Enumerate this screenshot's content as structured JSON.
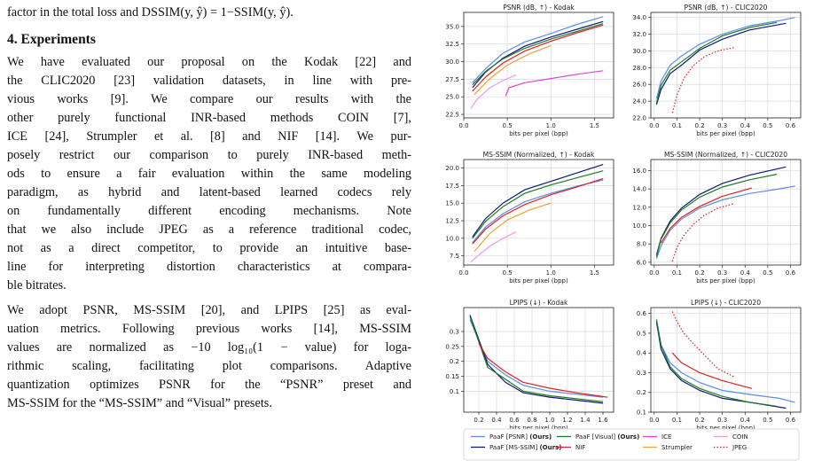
{
  "text": {
    "lines": [
      {
        "t": "factor in the total loss and DSSIM(y, ŷ) = 1−SSIM(y, ŷ).",
        "cls": ""
      },
      {
        "t": "4. Experiments",
        "cls": "h"
      },
      {
        "t": "We have evaluated our proposal on the Kodak [22] and",
        "cls": "j"
      },
      {
        "t": "the CLIC2020 [23] validation datasets, in line with pre-",
        "cls": "j"
      },
      {
        "t": "vious works [9].   We compare our results with the",
        "cls": "j"
      },
      {
        "t": "other purely functional INR-based methods COIN [7],",
        "cls": "j"
      },
      {
        "t": "ICE [24], Strumpler et al. [8] and NIF [14]. We pur-",
        "cls": "j"
      },
      {
        "t": "posely restrict our comparison to purely INR-based meth-",
        "cls": "j"
      },
      {
        "t": "ods to ensure a fair evaluation within the same modeling",
        "cls": "j"
      },
      {
        "t": "paradigm, as hybrid and latent-based learned codecs rely",
        "cls": "j"
      },
      {
        "t": "on fundamentally different encoding mechanisms. Note",
        "cls": "j"
      },
      {
        "t": "that we also include JPEG as a reference traditional codec,",
        "cls": "j"
      },
      {
        "t": "not as a direct competitor, to provide an intuitive base-",
        "cls": "j"
      },
      {
        "t": "line for interpreting distortion characteristics at compara-",
        "cls": "j"
      },
      {
        "t": "ble bitrates.",
        "cls": ""
      },
      {
        "t": "We adopt PSNR, MS-SSIM [20], and LPIPS [25] as eval-",
        "cls": "j"
      },
      {
        "t": "uation metrics. Following previous works [14], MS-SSIM",
        "cls": "j"
      },
      {
        "t": "values are normalized as −10 log₁₀(1 − value) for loga-",
        "cls": "j"
      },
      {
        "t": "rithmic scaling, facilitating plot comparisons. Adaptive",
        "cls": "j"
      },
      {
        "t": "quantization optimizes PSNR for the “PSNR” preset and",
        "cls": "j"
      },
      {
        "t": "MS-SSIM for the “MS-SSIM” and “Visual” presets.",
        "cls": ""
      }
    ]
  },
  "legend": [
    {
      "label": "PaaF [PSNR] ",
      "bold": "(Ours)",
      "color": "#5b8ee6",
      "dash": false
    },
    {
      "label": "PaaF [MS-SSIM] ",
      "bold": "(Ours)",
      "color": "#0b1a7a",
      "dash": false
    },
    {
      "label": "PaaF [Visual] ",
      "bold": "(Ours)",
      "color": "#1f7a1f",
      "dash": false
    },
    {
      "label": "NIF",
      "bold": "",
      "color": "#e02020",
      "dash": false
    },
    {
      "label": "ICE",
      "bold": "",
      "color": "#e040e0",
      "dash": false
    },
    {
      "label": "Strumpler",
      "bold": "",
      "color": "#f2a033",
      "dash": false
    },
    {
      "label": "COIN",
      "bold": "",
      "color": "#f09ae6",
      "dash": false
    },
    {
      "label": "JPEG",
      "bold": "",
      "color": "#d42020",
      "dash": true
    }
  ],
  "chart_data": [
    {
      "type": "line",
      "title": "PSNR (dB, ↑) - Kodak",
      "xlabel": "bits per pixel (bpp)",
      "ylabel": "",
      "xlim": [
        0,
        1.72
      ],
      "ylim": [
        22,
        37
      ],
      "xticks": [
        0.0,
        0.5,
        1.0,
        1.5
      ],
      "xticklabels": [
        "0.0",
        "0.5",
        "1.0",
        "1.5"
      ],
      "yticks": [
        22.5,
        25.0,
        27.5,
        30.0,
        32.5,
        35.0
      ],
      "yticklabels": [
        "22.5",
        "25.0",
        "27.5",
        "30.0",
        "32.5",
        "35.0"
      ],
      "series": [
        {
          "name": "PaaF [PSNR] (Ours)",
          "x": [
            0.1,
            0.25,
            0.45,
            0.7,
            1.0,
            1.3,
            1.6
          ],
          "y": [
            27.0,
            29.0,
            31.2,
            32.8,
            34.0,
            35.3,
            36.4
          ]
        },
        {
          "name": "PaaF [MS-SSIM] (Ours)",
          "x": [
            0.1,
            0.25,
            0.45,
            0.7,
            1.0,
            1.3,
            1.6
          ],
          "y": [
            26.3,
            28.5,
            30.5,
            32.2,
            33.5,
            34.6,
            35.7
          ]
        },
        {
          "name": "PaaF [Visual] (Ours)",
          "x": [
            0.1,
            0.25,
            0.45,
            0.7,
            1.0,
            1.3,
            1.6
          ],
          "y": [
            26.7,
            28.6,
            30.4,
            31.9,
            33.2,
            34.3,
            35.4
          ]
        },
        {
          "name": "NIF",
          "x": [
            0.1,
            0.25,
            0.45,
            0.7,
            1.0,
            1.3,
            1.6
          ],
          "y": [
            25.8,
            27.8,
            29.8,
            31.5,
            32.9,
            34.1,
            35.2
          ]
        },
        {
          "name": "ICE",
          "x": [
            0.48,
            0.52,
            0.7,
            1.0,
            1.3,
            1.6
          ],
          "y": [
            25.1,
            26.3,
            27.0,
            27.6,
            28.2,
            28.7
          ]
        },
        {
          "name": "Strumpler",
          "x": [
            0.12,
            0.3,
            0.5,
            0.75,
            1.0
          ],
          "y": [
            25.3,
            27.6,
            29.5,
            31.1,
            32.3
          ]
        },
        {
          "name": "COIN",
          "x": [
            0.08,
            0.15,
            0.3,
            0.45,
            0.6
          ],
          "y": [
            23.3,
            24.6,
            26.3,
            27.3,
            28.1
          ]
        }
      ]
    },
    {
      "type": "line",
      "title": "PSNR (dB, ↑) - CLIC2020",
      "xlabel": "bits per pixel (bpp)",
      "ylabel": "",
      "xlim": [
        -0.015,
        0.645
      ],
      "ylim": [
        22,
        34.6
      ],
      "xticks": [
        0.0,
        0.1,
        0.2,
        0.3,
        0.4,
        0.5,
        0.6
      ],
      "xticklabels": [
        "0.0",
        "0.1",
        "0.2",
        "0.3",
        "0.4",
        "0.5",
        "0.6"
      ],
      "yticks": [
        22,
        24,
        26,
        28,
        30,
        32,
        34
      ],
      "yticklabels": [
        "22.0",
        "24.0",
        "26.0",
        "28.0",
        "30.0",
        "32.0",
        "34.0"
      ],
      "series": [
        {
          "name": "PaaF [PSNR] (Ours)",
          "x": [
            0.01,
            0.03,
            0.07,
            0.12,
            0.2,
            0.3,
            0.42,
            0.55,
            0.62
          ],
          "y": [
            24.3,
            26.4,
            28.3,
            29.4,
            30.8,
            32.0,
            33.0,
            33.6,
            34.0
          ]
        },
        {
          "name": "PaaF [MS-SSIM] (Ours)",
          "x": [
            0.01,
            0.03,
            0.07,
            0.12,
            0.2,
            0.3,
            0.42,
            0.58
          ],
          "y": [
            23.6,
            25.4,
            27.3,
            28.3,
            30.1,
            31.4,
            32.5,
            33.3
          ]
        },
        {
          "name": "PaaF [Visual] (Ours)",
          "x": [
            0.01,
            0.03,
            0.07,
            0.12,
            0.2,
            0.3,
            0.42,
            0.54
          ],
          "y": [
            23.8,
            25.9,
            27.7,
            28.7,
            30.3,
            31.8,
            32.8,
            33.4
          ]
        },
        {
          "name": "JPEG",
          "x": [
            0.08,
            0.1,
            0.13,
            0.17,
            0.22,
            0.28,
            0.35
          ],
          "y": [
            22.6,
            24.7,
            26.7,
            28.2,
            29.3,
            30.0,
            30.4
          ]
        }
      ]
    },
    {
      "type": "line",
      "title": "MS-SSIM (Normalized, ↑) - Kodak",
      "xlabel": "bits per pixel (bpp)",
      "ylabel": "",
      "xlim": [
        0,
        1.72
      ],
      "ylim": [
        6.2,
        21.2
      ],
      "xticks": [
        0.0,
        0.5,
        1.0,
        1.5
      ],
      "xticklabels": [
        "0.0",
        "0.5",
        "1.0",
        "1.5"
      ],
      "yticks": [
        7.5,
        10.0,
        12.5,
        15.0,
        17.5,
        20.0
      ],
      "yticklabels": [
        "7.5",
        "10.0",
        "12.5",
        "15.0",
        "17.5",
        "20.0"
      ],
      "series": [
        {
          "name": "PaaF [PSNR] (Ours)",
          "x": [
            0.1,
            0.25,
            0.45,
            0.7,
            1.0,
            1.3,
            1.6
          ],
          "y": [
            9.4,
            11.6,
            13.5,
            15.2,
            16.4,
            17.4,
            18.3
          ]
        },
        {
          "name": "PaaF [MS-SSIM] (Ours)",
          "x": [
            0.1,
            0.25,
            0.45,
            0.7,
            1.0,
            1.3,
            1.6
          ],
          "y": [
            10.2,
            12.8,
            15.0,
            16.9,
            18.1,
            19.3,
            20.5
          ]
        },
        {
          "name": "PaaF [Visual] (Ours)",
          "x": [
            0.1,
            0.25,
            0.45,
            0.7,
            1.0,
            1.3,
            1.6
          ],
          "y": [
            10.0,
            12.4,
            14.5,
            16.4,
            17.6,
            18.6,
            19.6
          ]
        },
        {
          "name": "NIF",
          "x": [
            0.1,
            0.25,
            0.45,
            0.7,
            1.0,
            1.3,
            1.6
          ],
          "y": [
            9.2,
            11.3,
            13.2,
            14.8,
            16.2,
            17.3,
            18.5
          ]
        },
        {
          "name": "Strumpler",
          "x": [
            0.12,
            0.3,
            0.5,
            0.75,
            1.0
          ],
          "y": [
            8.1,
            10.7,
            12.6,
            14.0,
            15.0
          ]
        },
        {
          "name": "COIN",
          "x": [
            0.08,
            0.15,
            0.3,
            0.45,
            0.6
          ],
          "y": [
            6.6,
            7.4,
            8.9,
            10.0,
            10.9
          ]
        }
      ]
    },
    {
      "type": "line",
      "title": "MS-SSIM (Normalized, ↑) - CLIC2020",
      "xlabel": "bits per pixel (bpp)",
      "ylabel": "",
      "xlim": [
        -0.015,
        0.645
      ],
      "ylim": [
        5.7,
        17.2
      ],
      "xticks": [
        0.0,
        0.1,
        0.2,
        0.3,
        0.4,
        0.5,
        0.6
      ],
      "xticklabels": [
        "0.0",
        "0.1",
        "0.2",
        "0.3",
        "0.4",
        "0.5",
        "0.6"
      ],
      "yticks": [
        6,
        8,
        10,
        12,
        14,
        16
      ],
      "yticklabels": [
        "6.0",
        "8.0",
        "10.0",
        "12.0",
        "14.0",
        "16.0"
      ],
      "series": [
        {
          "name": "PaaF [PSNR] (Ours)",
          "x": [
            0.01,
            0.03,
            0.07,
            0.12,
            0.2,
            0.3,
            0.42,
            0.55,
            0.62
          ],
          "y": [
            6.4,
            7.8,
            9.5,
            10.7,
            11.9,
            12.8,
            13.5,
            14.0,
            14.3
          ]
        },
        {
          "name": "PaaF [MS-SSIM] (Ours)",
          "x": [
            0.01,
            0.03,
            0.07,
            0.12,
            0.2,
            0.3,
            0.42,
            0.58
          ],
          "y": [
            6.8,
            8.6,
            10.5,
            11.9,
            13.4,
            14.6,
            15.5,
            16.4
          ]
        },
        {
          "name": "PaaF [Visual] (Ours)",
          "x": [
            0.01,
            0.03,
            0.07,
            0.12,
            0.2,
            0.3,
            0.42,
            0.54
          ],
          "y": [
            6.6,
            8.5,
            10.3,
            11.7,
            13.1,
            14.2,
            15.0,
            15.6
          ]
        },
        {
          "name": "NIF",
          "x": [
            0.03,
            0.07,
            0.12,
            0.2,
            0.3,
            0.43
          ],
          "y": [
            8.1,
            9.7,
            10.9,
            12.1,
            13.2,
            14.1
          ]
        },
        {
          "name": "JPEG",
          "x": [
            0.08,
            0.1,
            0.13,
            0.17,
            0.22,
            0.28,
            0.35
          ],
          "y": [
            6.1,
            7.6,
            8.9,
            10.1,
            11.1,
            11.9,
            12.4
          ]
        }
      ]
    },
    {
      "type": "line",
      "title": "LPIPS (↓) - Kodak",
      "xlabel": "bits per pixel (bpp)",
      "ylabel": "",
      "xlim": [
        0.03,
        1.72
      ],
      "ylim": [
        0.03,
        0.38
      ],
      "xticks": [
        0.2,
        0.4,
        0.6,
        0.8,
        1.0,
        1.2,
        1.4,
        1.6
      ],
      "xticklabels": [
        "0.2",
        "0.4",
        "0.6",
        "0.8",
        "1.0",
        "1.2",
        "1.4",
        "1.6"
      ],
      "yticks": [
        0.1,
        0.15,
        0.2,
        0.25,
        0.3
      ],
      "yticklabels": [
        "0.1",
        "0.15",
        "0.2",
        "0.25",
        "0.3"
      ],
      "series": [
        {
          "name": "PaaF [PSNR] (Ours)",
          "x": [
            0.1,
            0.3,
            0.5,
            0.7,
            1.0,
            1.3,
            1.6
          ],
          "y": [
            0.34,
            0.2,
            0.155,
            0.12,
            0.1,
            0.09,
            0.08
          ]
        },
        {
          "name": "PaaF [MS-SSIM] (Ours)",
          "x": [
            0.1,
            0.3,
            0.5,
            0.7,
            1.0,
            1.3,
            1.6
          ],
          "y": [
            0.355,
            0.19,
            0.13,
            0.095,
            0.08,
            0.07,
            0.06
          ]
        },
        {
          "name": "PaaF [Visual] (Ours)",
          "x": [
            0.1,
            0.3,
            0.5,
            0.7,
            1.0,
            1.3,
            1.6
          ],
          "y": [
            0.35,
            0.18,
            0.14,
            0.1,
            0.085,
            0.075,
            0.065
          ]
        },
        {
          "name": "NIF",
          "x": [
            0.2,
            0.3,
            0.5,
            0.7,
            1.0,
            1.3,
            1.65
          ],
          "y": [
            0.26,
            0.21,
            0.165,
            0.13,
            0.11,
            0.095,
            0.08
          ]
        }
      ]
    },
    {
      "type": "line",
      "title": "LPIPS (↓) - CLIC2020",
      "xlabel": "bits per pixel (bpp)",
      "ylabel": "",
      "xlim": [
        -0.015,
        0.645
      ],
      "ylim": [
        0.1,
        0.63
      ],
      "xticks": [
        0.0,
        0.1,
        0.2,
        0.3,
        0.4,
        0.5,
        0.6
      ],
      "xticklabels": [
        "0.0",
        "0.1",
        "0.2",
        "0.3",
        "0.4",
        "0.5",
        "0.6"
      ],
      "yticks": [
        0.1,
        0.2,
        0.3,
        0.4,
        0.5,
        0.6
      ],
      "yticklabels": [
        "0.1",
        "0.2",
        "0.3",
        "0.4",
        "0.5",
        "0.6"
      ],
      "series": [
        {
          "name": "PaaF [PSNR] (Ours)",
          "x": [
            0.01,
            0.03,
            0.07,
            0.12,
            0.2,
            0.3,
            0.42,
            0.55,
            0.62
          ],
          "y": [
            0.55,
            0.44,
            0.35,
            0.3,
            0.25,
            0.21,
            0.19,
            0.17,
            0.15
          ]
        },
        {
          "name": "PaaF [MS-SSIM] (Ours)",
          "x": [
            0.01,
            0.03,
            0.07,
            0.12,
            0.2,
            0.3,
            0.42,
            0.58
          ],
          "y": [
            0.56,
            0.42,
            0.32,
            0.26,
            0.21,
            0.17,
            0.15,
            0.12
          ]
        },
        {
          "name": "PaaF [Visual] (Ours)",
          "x": [
            0.01,
            0.03,
            0.07,
            0.12,
            0.2,
            0.3,
            0.42,
            0.54
          ],
          "y": [
            0.57,
            0.44,
            0.33,
            0.27,
            0.22,
            0.18,
            0.15,
            0.13
          ]
        },
        {
          "name": "NIF",
          "x": [
            0.08,
            0.12,
            0.2,
            0.3,
            0.43
          ],
          "y": [
            0.4,
            0.35,
            0.3,
            0.26,
            0.22
          ]
        },
        {
          "name": "JPEG",
          "x": [
            0.08,
            0.1,
            0.13,
            0.17,
            0.22,
            0.28,
            0.35
          ],
          "y": [
            0.61,
            0.56,
            0.5,
            0.45,
            0.39,
            0.32,
            0.28
          ]
        }
      ]
    }
  ]
}
